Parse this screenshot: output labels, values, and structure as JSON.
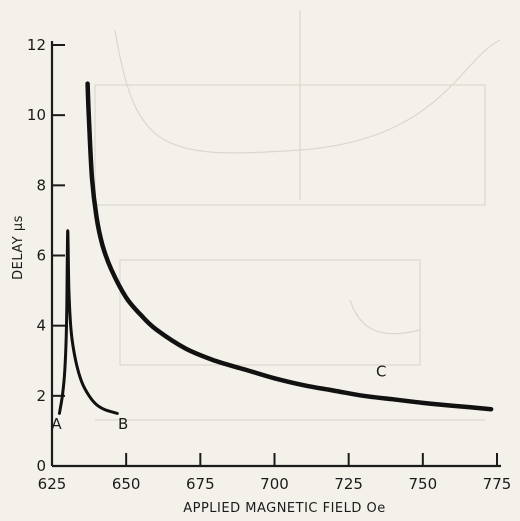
{
  "chart_data": {
    "type": "line",
    "title": "",
    "xlabel": "APPLIED MAGNETIC FIELD Oe",
    "ylabel": "DELAY µs",
    "xlim": [
      625,
      775
    ],
    "ylim": [
      0,
      12
    ],
    "x_ticks": [
      625,
      650,
      675,
      700,
      725,
      750,
      775
    ],
    "y_ticks": [
      0,
      2,
      4,
      6,
      8,
      10,
      12
    ],
    "x_tick_labels": [
      "625",
      "650",
      "675",
      "700",
      "725",
      "750",
      "775"
    ],
    "y_tick_labels": [
      "0",
      "2",
      "4",
      "6",
      "8",
      "10",
      "12"
    ],
    "grid": false,
    "series": [
      {
        "points": [
          {
            "x": 627.5,
            "y": 1.5
          },
          {
            "x": 628.5,
            "y": 2.0
          },
          {
            "x": 629.2,
            "y": 2.6
          },
          {
            "x": 629.7,
            "y": 3.4
          },
          {
            "x": 630.0,
            "y": 4.5
          },
          {
            "x": 630.3,
            "y": 6.7
          },
          {
            "x": 630.7,
            "y": 5.0
          },
          {
            "x": 631.5,
            "y": 3.8
          },
          {
            "x": 633.0,
            "y": 3.0
          },
          {
            "x": 635.0,
            "y": 2.4
          },
          {
            "x": 637.5,
            "y": 2.0
          },
          {
            "x": 640.0,
            "y": 1.75
          },
          {
            "x": 643.0,
            "y": 1.6
          },
          {
            "x": 647.0,
            "y": 1.5
          }
        ]
      },
      {
        "points": [
          {
            "x": 637.0,
            "y": 10.9
          },
          {
            "x": 637.5,
            "y": 9.8
          },
          {
            "x": 638.5,
            "y": 8.2
          },
          {
            "x": 640.0,
            "y": 7.1
          },
          {
            "x": 642.0,
            "y": 6.3
          },
          {
            "x": 645.0,
            "y": 5.6
          },
          {
            "x": 650.0,
            "y": 4.8
          },
          {
            "x": 655.0,
            "y": 4.3
          },
          {
            "x": 660.0,
            "y": 3.9
          },
          {
            "x": 670.0,
            "y": 3.35
          },
          {
            "x": 680.0,
            "y": 3.0
          },
          {
            "x": 690.0,
            "y": 2.75
          },
          {
            "x": 700.0,
            "y": 2.5
          },
          {
            "x": 710.0,
            "y": 2.3
          },
          {
            "x": 720.0,
            "y": 2.15
          },
          {
            "x": 730.0,
            "y": 2.0
          },
          {
            "x": 740.0,
            "y": 1.9
          },
          {
            "x": 750.0,
            "y": 1.8
          },
          {
            "x": 760.0,
            "y": 1.72
          },
          {
            "x": 773.0,
            "y": 1.62
          }
        ]
      }
    ],
    "annotations": [
      {
        "text": "A",
        "x": 626.5,
        "y": 1.2
      },
      {
        "text": "B",
        "x": 649.0,
        "y": 1.2
      },
      {
        "text": "C",
        "x": 736.0,
        "y": 2.7
      }
    ]
  }
}
